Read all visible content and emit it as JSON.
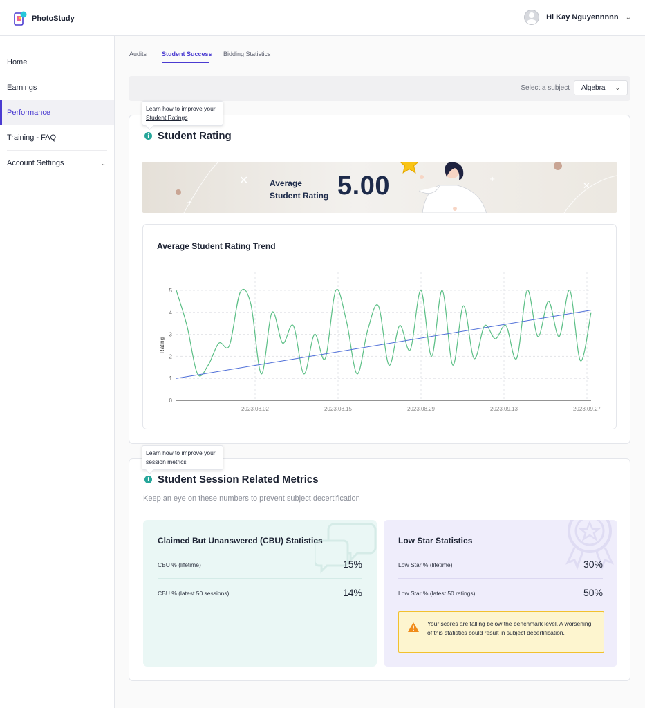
{
  "app": {
    "name": "PhotoStudy"
  },
  "header": {
    "greeting": "Hi Kay Nguyennnnn"
  },
  "sidebar": {
    "items": [
      {
        "label": "Home"
      },
      {
        "label": "Earnings"
      },
      {
        "label": "Performance",
        "active": true
      },
      {
        "label": "Training - FAQ"
      },
      {
        "label": "Account Settings"
      }
    ]
  },
  "tabs": [
    {
      "label": "Audits"
    },
    {
      "label": "Student Success",
      "active": true
    },
    {
      "label": "Bidding Statistics"
    }
  ],
  "subject": {
    "label": "Select a subject",
    "selected": "Algebra"
  },
  "rating_section": {
    "tooltip_prefix": "Learn how to improve your",
    "tooltip_link": "Student Ratings",
    "title": "Student Rating",
    "banner_label_line1": "Average",
    "banner_label_line2": "Student Rating",
    "banner_value": "5.00"
  },
  "chart_data": {
    "type": "line",
    "title": "Average Student Rating Trend",
    "xlabel": "",
    "ylabel": "Rating",
    "ylim": [
      0,
      5
    ],
    "yticks": [
      "0",
      "1",
      "2",
      "3",
      "4",
      "5"
    ],
    "xticks": [
      "2023.08.02",
      "2023.08.15",
      "2023.08.29",
      "2023.09.13",
      "2023.09.27"
    ],
    "grid": true,
    "series": [
      {
        "color": "#5cbf86",
        "values": [
          5.0,
          3.4,
          1.2,
          1.6,
          2.6,
          2.5,
          4.9,
          4.4,
          1.2,
          4.0,
          2.6,
          3.4,
          1.2,
          3.0,
          1.9,
          5.0,
          3.6,
          1.2,
          3.2,
          4.3,
          1.6,
          3.4,
          2.3,
          5.0,
          2.0,
          5.0,
          1.6,
          4.3,
          1.9,
          3.4,
          2.8,
          3.4,
          1.9,
          5.0,
          2.9,
          4.5,
          2.9,
          5.0,
          1.8,
          4.0
        ]
      },
      {
        "color": "#4f6fd8",
        "values": [
          1.0,
          4.1
        ]
      }
    ]
  },
  "session_section": {
    "tooltip_prefix": "Learn how to improve your",
    "tooltip_link": "session metrics",
    "title": "Student Session Related Metrics",
    "subtitle": "Keep an eye on these numbers to prevent subject decertification",
    "cbu": {
      "title": "Claimed But Unanswered (CBU) Statistics",
      "rows": [
        {
          "label": "CBU % (lifetime)",
          "value": "15%"
        },
        {
          "label": "CBU % (latest 50 sessions)",
          "value": "14%"
        }
      ],
      "bg": "#eaf7f5"
    },
    "low_star": {
      "title": "Low Star Statistics",
      "rows": [
        {
          "label": "Low Star % (lifetime)",
          "value": "30%"
        },
        {
          "label": "Low Star % (latest 50 ratings)",
          "value": "50%"
        }
      ],
      "warning": "Your scores are falling below the benchmark level. A worsening of this statistics could result in subject decertification.",
      "bg": "#efedfb"
    }
  },
  "colors": {
    "accent": "#4a3bd1",
    "teal": "#26a69a",
    "warning_border": "#f2c12e"
  },
  "icons": {
    "logo": "photostudy-logo-icon",
    "avatar": "user-avatar-icon",
    "info": "info-icon",
    "warning": "warning-icon",
    "star": "star-icon"
  }
}
